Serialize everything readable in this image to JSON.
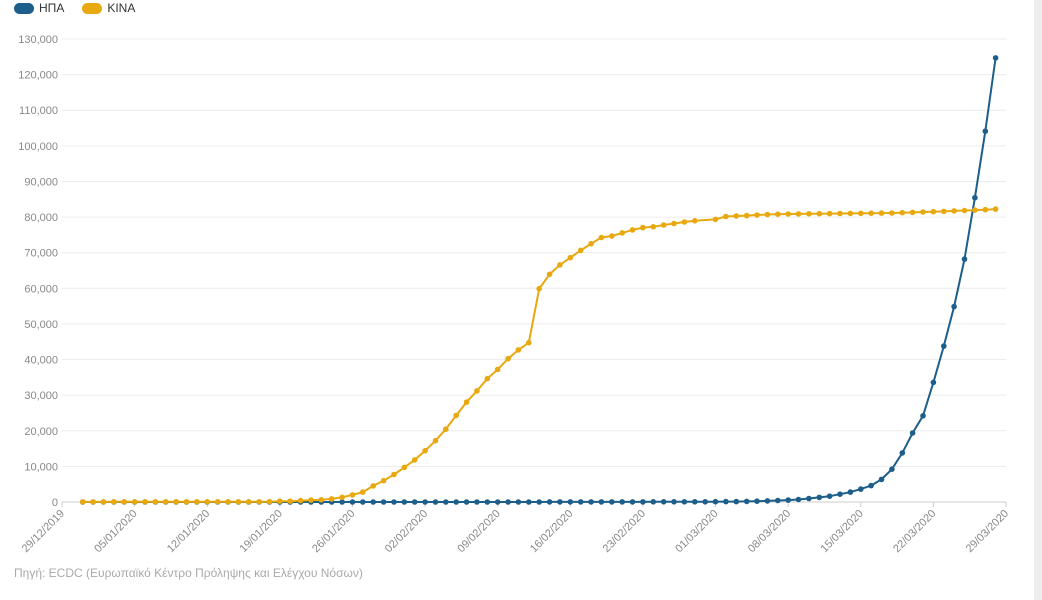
{
  "chart_data": {
    "type": "line",
    "title": "",
    "xlabel": "",
    "ylabel": "",
    "x_start": "29/12/2019",
    "x_end": "29/03/2020",
    "xticks": [
      "29/12/2019",
      "05/01/2020",
      "12/01/2020",
      "19/01/2020",
      "26/01/2020",
      "02/02/2020",
      "09/02/2020",
      "16/02/2020",
      "23/02/2020",
      "01/03/2020",
      "08/03/2020",
      "15/03/2020",
      "22/03/2020",
      "29/03/2020"
    ],
    "yticks": [
      "0",
      "10,000",
      "20,000",
      "30,000",
      "40,000",
      "50,000",
      "60,000",
      "70,000",
      "80,000",
      "90,000",
      "100,000",
      "110,000",
      "120,000",
      "130,000"
    ],
    "ylim": [
      0,
      130000
    ],
    "grid": true,
    "legend_position": "top-left",
    "series": [
      {
        "name": "ΗΠΑ",
        "color": "#1d5e8a",
        "points": [
          [
            "31/12/2019",
            0
          ],
          [
            "01/01/2020",
            0
          ],
          [
            "02/01/2020",
            0
          ],
          [
            "03/01/2020",
            0
          ],
          [
            "04/01/2020",
            0
          ],
          [
            "05/01/2020",
            0
          ],
          [
            "06/01/2020",
            0
          ],
          [
            "07/01/2020",
            0
          ],
          [
            "08/01/2020",
            0
          ],
          [
            "09/01/2020",
            0
          ],
          [
            "10/01/2020",
            0
          ],
          [
            "11/01/2020",
            0
          ],
          [
            "12/01/2020",
            0
          ],
          [
            "13/01/2020",
            0
          ],
          [
            "14/01/2020",
            0
          ],
          [
            "15/01/2020",
            0
          ],
          [
            "16/01/2020",
            0
          ],
          [
            "17/01/2020",
            0
          ],
          [
            "18/01/2020",
            0
          ],
          [
            "19/01/2020",
            0
          ],
          [
            "20/01/2020",
            0
          ],
          [
            "21/01/2020",
            1
          ],
          [
            "22/01/2020",
            1
          ],
          [
            "23/01/2020",
            1
          ],
          [
            "24/01/2020",
            2
          ],
          [
            "25/01/2020",
            2
          ],
          [
            "26/01/2020",
            5
          ],
          [
            "27/01/2020",
            5
          ],
          [
            "28/01/2020",
            5
          ],
          [
            "29/01/2020",
            5
          ],
          [
            "30/01/2020",
            6
          ],
          [
            "31/01/2020",
            7
          ],
          [
            "01/02/2020",
            8
          ],
          [
            "02/02/2020",
            8
          ],
          [
            "03/02/2020",
            11
          ],
          [
            "04/02/2020",
            11
          ],
          [
            "05/02/2020",
            11
          ],
          [
            "06/02/2020",
            12
          ],
          [
            "07/02/2020",
            12
          ],
          [
            "08/02/2020",
            12
          ],
          [
            "09/02/2020",
            12
          ],
          [
            "10/02/2020",
            12
          ],
          [
            "11/02/2020",
            13
          ],
          [
            "12/02/2020",
            13
          ],
          [
            "13/02/2020",
            14
          ],
          [
            "14/02/2020",
            15
          ],
          [
            "15/02/2020",
            15
          ],
          [
            "16/02/2020",
            15
          ],
          [
            "17/02/2020",
            15
          ],
          [
            "18/02/2020",
            15
          ],
          [
            "19/02/2020",
            15
          ],
          [
            "20/02/2020",
            15
          ],
          [
            "21/02/2020",
            35
          ],
          [
            "22/02/2020",
            35
          ],
          [
            "23/02/2020",
            35
          ],
          [
            "24/02/2020",
            53
          ],
          [
            "25/02/2020",
            53
          ],
          [
            "26/02/2020",
            59
          ],
          [
            "27/02/2020",
            60
          ],
          [
            "28/02/2020",
            62
          ],
          [
            "29/02/2020",
            68
          ],
          [
            "01/03/2020",
            75
          ],
          [
            "02/03/2020",
            100
          ],
          [
            "03/03/2020",
            124
          ],
          [
            "04/03/2020",
            158
          ],
          [
            "05/03/2020",
            221
          ],
          [
            "06/03/2020",
            319
          ],
          [
            "07/03/2020",
            435
          ],
          [
            "08/03/2020",
            541
          ],
          [
            "09/03/2020",
            704
          ],
          [
            "10/03/2020",
            994
          ],
          [
            "11/03/2020",
            1301
          ],
          [
            "12/03/2020",
            1630
          ],
          [
            "13/03/2020",
            2183
          ],
          [
            "14/03/2020",
            2770
          ],
          [
            "15/03/2020",
            3613
          ],
          [
            "16/03/2020",
            4596
          ],
          [
            "17/03/2020",
            6344
          ],
          [
            "18/03/2020",
            9197
          ],
          [
            "19/03/2020",
            13779
          ],
          [
            "20/03/2020",
            19367
          ],
          [
            "21/03/2020",
            24192
          ],
          [
            "22/03/2020",
            33592
          ],
          [
            "23/03/2020",
            43781
          ],
          [
            "24/03/2020",
            54856
          ],
          [
            "25/03/2020",
            68211
          ],
          [
            "26/03/2020",
            85435
          ],
          [
            "27/03/2020",
            104126
          ],
          [
            "28/03/2020",
            124686
          ]
        ]
      },
      {
        "name": "ΚΙΝΑ",
        "color": "#e8a80f",
        "points": [
          [
            "31/12/2019",
            27
          ],
          [
            "01/01/2020",
            27
          ],
          [
            "02/01/2020",
            27
          ],
          [
            "03/01/2020",
            44
          ],
          [
            "04/01/2020",
            44
          ],
          [
            "05/01/2020",
            59
          ],
          [
            "06/01/2020",
            59
          ],
          [
            "07/01/2020",
            59
          ],
          [
            "08/01/2020",
            59
          ],
          [
            "09/01/2020",
            59
          ],
          [
            "10/01/2020",
            59
          ],
          [
            "11/01/2020",
            59
          ],
          [
            "12/01/2020",
            59
          ],
          [
            "13/01/2020",
            59
          ],
          [
            "14/01/2020",
            59
          ],
          [
            "15/01/2020",
            59
          ],
          [
            "16/01/2020",
            59
          ],
          [
            "17/01/2020",
            63
          ],
          [
            "18/01/2020",
            80
          ],
          [
            "19/01/2020",
            216
          ],
          [
            "20/01/2020",
            235
          ],
          [
            "21/01/2020",
            386
          ],
          [
            "22/01/2020",
            526
          ],
          [
            "23/01/2020",
            623
          ],
          [
            "24/01/2020",
            882
          ],
          [
            "25/01/2020",
            1323
          ],
          [
            "26/01/2020",
            1988
          ],
          [
            "27/01/2020",
            2775
          ],
          [
            "28/01/2020",
            4528
          ],
          [
            "29/01/2020",
            5994
          ],
          [
            "30/01/2020",
            7734
          ],
          [
            "31/01/2020",
            9714
          ],
          [
            "01/02/2020",
            11809
          ],
          [
            "02/02/2020",
            14399
          ],
          [
            "03/02/2020",
            17211
          ],
          [
            "04/02/2020",
            20448
          ],
          [
            "05/02/2020",
            24320
          ],
          [
            "06/02/2020",
            28047
          ],
          [
            "07/02/2020",
            31207
          ],
          [
            "08/02/2020",
            34625
          ],
          [
            "09/02/2020",
            37232
          ],
          [
            "10/02/2020",
            40235
          ],
          [
            "11/02/2020",
            42708
          ],
          [
            "12/02/2020",
            44730
          ],
          [
            "13/02/2020",
            59882
          ],
          [
            "14/02/2020",
            63932
          ],
          [
            "15/02/2020",
            66576
          ],
          [
            "16/02/2020",
            68584
          ],
          [
            "17/02/2020",
            70635
          ],
          [
            "18/02/2020",
            72528
          ],
          [
            "19/02/2020",
            74279
          ],
          [
            "20/02/2020",
            74675
          ],
          [
            "21/02/2020",
            75569
          ],
          [
            "22/02/2020",
            76392
          ],
          [
            "23/02/2020",
            77042
          ],
          [
            "24/02/2020",
            77262
          ],
          [
            "25/02/2020",
            77780
          ],
          [
            "26/02/2020",
            78191
          ],
          [
            "27/02/2020",
            78630
          ],
          [
            "28/02/2020",
            78959
          ],
          [
            "01/03/2020",
            79356
          ],
          [
            "02/03/2020",
            80174
          ],
          [
            "03/03/2020",
            80303
          ],
          [
            "04/03/2020",
            80424
          ],
          [
            "05/03/2020",
            80581
          ],
          [
            "06/03/2020",
            80734
          ],
          [
            "07/03/2020",
            80816
          ],
          [
            "08/03/2020",
            80859
          ],
          [
            "09/03/2020",
            80904
          ],
          [
            "10/03/2020",
            80924
          ],
          [
            "11/03/2020",
            80955
          ],
          [
            "12/03/2020",
            80981
          ],
          [
            "13/03/2020",
            80991
          ],
          [
            "14/03/2020",
            81021
          ],
          [
            "15/03/2020",
            81048
          ],
          [
            "16/03/2020",
            81077
          ],
          [
            "17/03/2020",
            81116
          ],
          [
            "18/03/2020",
            81151
          ],
          [
            "19/03/2020",
            81235
          ],
          [
            "20/03/2020",
            81300
          ],
          [
            "21/03/2020",
            81416
          ],
          [
            "22/03/2020",
            81498
          ],
          [
            "23/03/2020",
            81600
          ],
          [
            "24/03/2020",
            81747
          ],
          [
            "25/03/2020",
            81846
          ],
          [
            "26/03/2020",
            81960
          ],
          [
            "27/03/2020",
            82078
          ],
          [
            "28/03/2020",
            82230
          ]
        ]
      }
    ]
  },
  "source_text": "Πηγή: ECDC (Ευρωπαϊκό Κέντρο Πρόληψης και Ελέγχου Νόσων)"
}
